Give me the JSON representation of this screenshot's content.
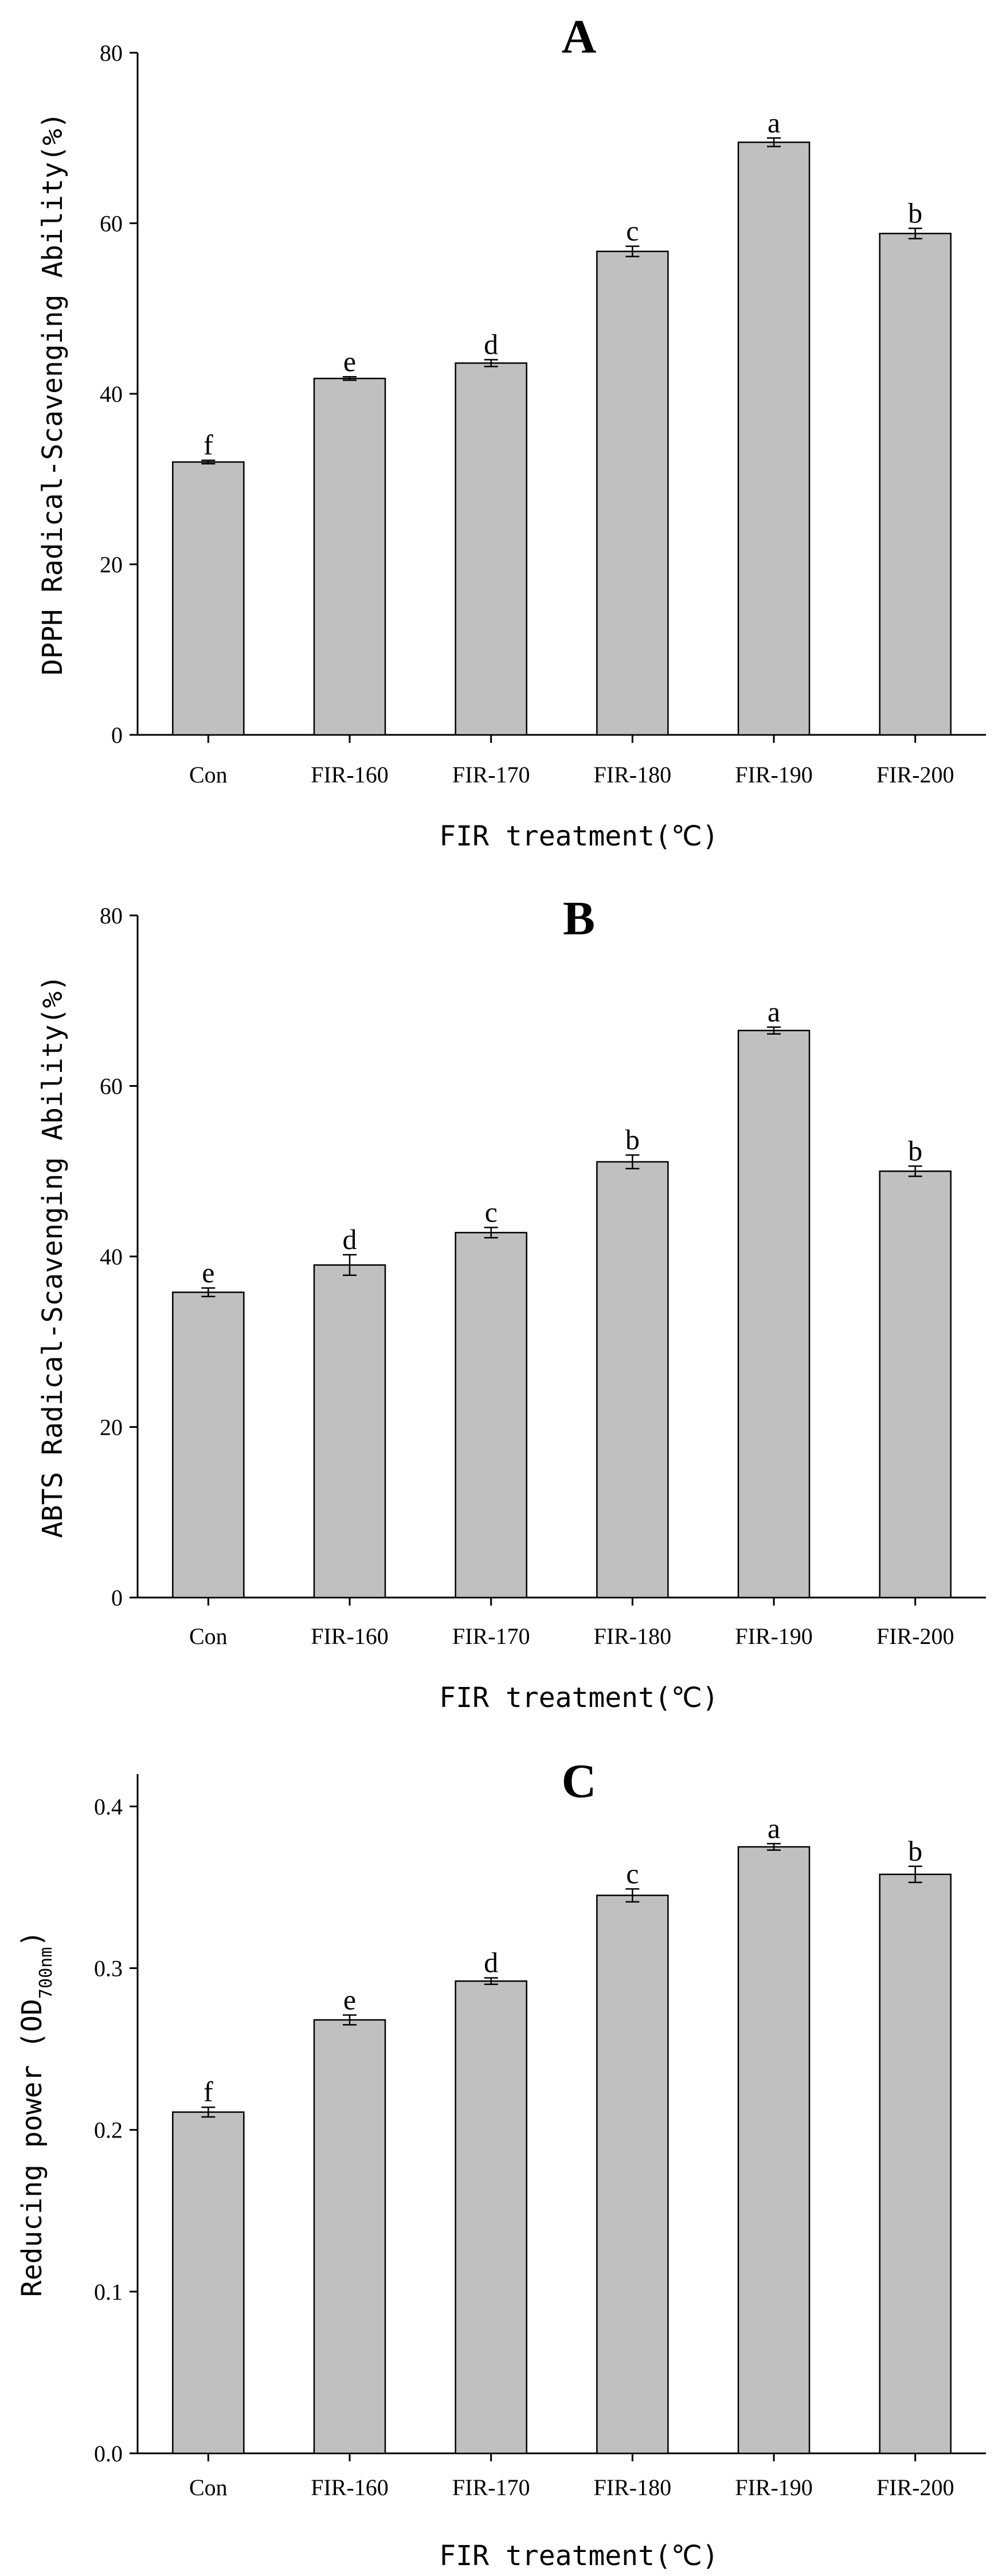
{
  "colors": {
    "bar_fill": "#c0c0c0",
    "axis": "#000000"
  },
  "chart_data": [
    {
      "type": "bar",
      "title": "A",
      "xlabel": "FIR treatment(℃)",
      "ylabel": "DPPH Radical-Scavenging Ability(%)",
      "ylabel_sub": "",
      "ylabel_tail": "",
      "categories": [
        "Con",
        "FIR-160",
        "FIR-170",
        "FIR-180",
        "FIR-190",
        "FIR-200"
      ],
      "values": [
        32.0,
        41.8,
        43.6,
        56.7,
        69.5,
        58.8
      ],
      "errors": [
        0.2,
        0.2,
        0.4,
        0.6,
        0.5,
        0.6
      ],
      "significance": [
        "f",
        "e",
        "d",
        "c",
        "a",
        "b"
      ],
      "ylim": [
        0,
        80
      ],
      "yticks": [
        0,
        20,
        40,
        60,
        80
      ],
      "ytick_labels": [
        "0",
        "20",
        "40",
        "60",
        "80"
      ]
    },
    {
      "type": "bar",
      "title": "B",
      "xlabel": "FIR treatment(℃)",
      "ylabel": "ABTS Radical-Scavenging Ability(%)",
      "ylabel_sub": "",
      "ylabel_tail": "",
      "categories": [
        "Con",
        "FIR-160",
        "FIR-170",
        "FIR-180",
        "FIR-190",
        "FIR-200"
      ],
      "values": [
        35.8,
        39.0,
        42.8,
        51.1,
        66.5,
        50.0
      ],
      "errors": [
        0.5,
        1.2,
        0.6,
        0.8,
        0.4,
        0.6
      ],
      "significance": [
        "e",
        "d",
        "c",
        "b",
        "a",
        "b"
      ],
      "ylim": [
        0,
        80
      ],
      "yticks": [
        0,
        20,
        40,
        60,
        80
      ],
      "ytick_labels": [
        "0",
        "20",
        "40",
        "60",
        "80"
      ]
    },
    {
      "type": "bar",
      "title": "C",
      "xlabel": "FIR treatment(℃)",
      "ylabel": "Reducing power (OD",
      "ylabel_sub": "700nm",
      "ylabel_tail": ")",
      "categories": [
        "Con",
        "FIR-160",
        "FIR-170",
        "FIR-180",
        "FIR-190",
        "FIR-200"
      ],
      "values": [
        0.211,
        0.268,
        0.292,
        0.345,
        0.375,
        0.358
      ],
      "errors": [
        0.003,
        0.003,
        0.002,
        0.004,
        0.002,
        0.005
      ],
      "significance": [
        "f",
        "e",
        "d",
        "c",
        "a",
        "b"
      ],
      "ylim": [
        0,
        0.42
      ],
      "yticks": [
        0.0,
        0.1,
        0.2,
        0.3,
        0.4
      ],
      "ytick_labels": [
        "0.0",
        "0.1",
        "0.2",
        "0.3",
        "0.4"
      ]
    }
  ]
}
